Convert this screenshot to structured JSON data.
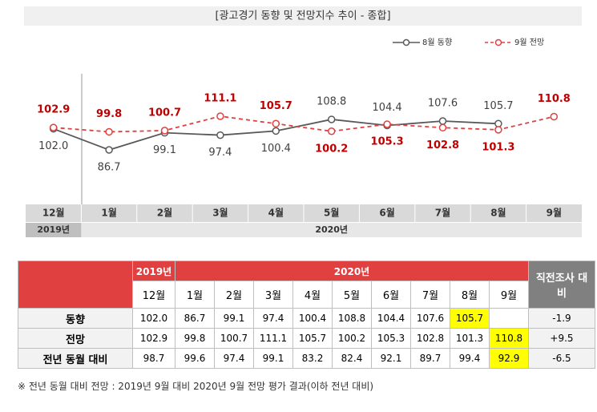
{
  "chart_data": {
    "type": "line",
    "title": "[광고경기 동향 및 전망지수 추이 - 종합]",
    "categories": [
      "12월",
      "1월",
      "2월",
      "3월",
      "4월",
      "5월",
      "6월",
      "7월",
      "8월",
      "9월"
    ],
    "year_labels": [
      "2019년",
      "2020년"
    ],
    "series": [
      {
        "name": "8월 동향",
        "color": "#595959",
        "dashed": false,
        "values": [
          102.0,
          86.7,
          99.1,
          97.4,
          100.4,
          108.8,
          104.4,
          107.6,
          105.7,
          null
        ],
        "value_labels": [
          "102.0",
          "86.7",
          "99.1",
          "97.4",
          "100.4",
          "108.8",
          "104.4",
          "107.6",
          "105.7",
          null
        ]
      },
      {
        "name": "9월 전망",
        "color": "#e0403f",
        "dashed": true,
        "values": [
          102.9,
          99.8,
          100.7,
          111.1,
          105.7,
          100.2,
          105.3,
          102.8,
          101.3,
          110.8
        ]
      }
    ]
  },
  "table": {
    "year_headers": [
      "2019년",
      "2020년"
    ],
    "change_header": "직전조사 대비",
    "months": [
      "12월",
      "1월",
      "2월",
      "3월",
      "4월",
      "5월",
      "6월",
      "7월",
      "8월",
      "9월"
    ],
    "rows": [
      {
        "label": "동향",
        "values": [
          "102.0",
          "86.7",
          "99.1",
          "97.4",
          "100.4",
          "108.8",
          "104.4",
          "107.6",
          "105.7",
          null
        ],
        "change": "-1.9"
      },
      {
        "label": "전망",
        "values": [
          "102.9",
          "99.8",
          "100.7",
          "111.1",
          "105.7",
          "100.2",
          "105.3",
          "102.8",
          "101.3",
          "110.8"
        ],
        "change": "+9.5"
      },
      {
        "label": "전년 동월 대비",
        "values": [
          "98.7",
          "99.6",
          "97.4",
          "99.1",
          "83.2",
          "82.4",
          "92.1",
          "89.7",
          "99.4",
          "92.9"
        ],
        "change": "-6.5"
      }
    ]
  },
  "footnote": "※ 전년 동월 대비 전망 : 2019년 9월 대비 2020년 9월 전망 평가 결과(이하 전년 대비)"
}
